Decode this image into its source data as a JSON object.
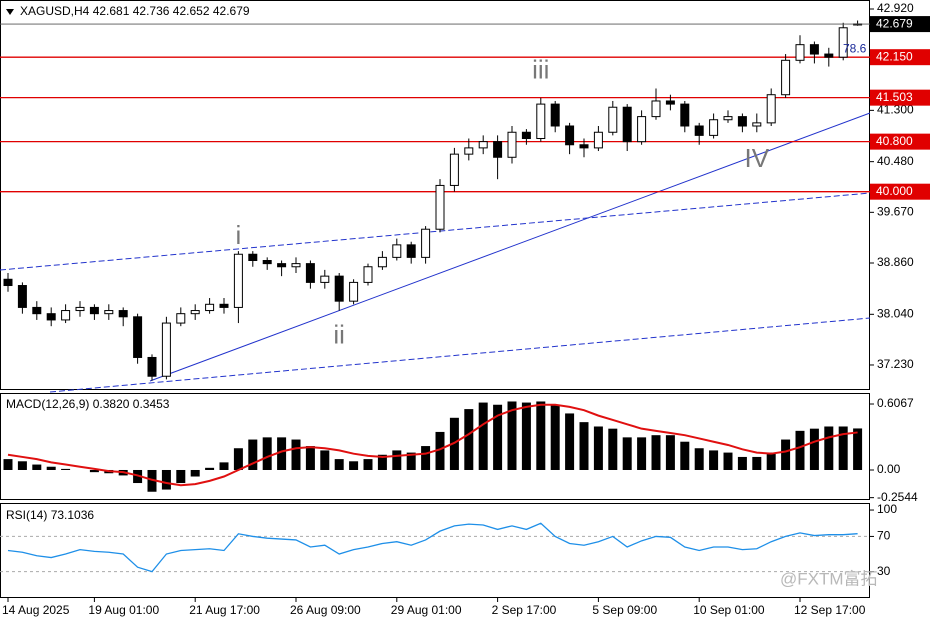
{
  "chart_data": [
    {
      "type": "candlestick",
      "title": "XAGUSD,H4",
      "categories": [
        "14 Aug 2025",
        null,
        null,
        null,
        null,
        null,
        "19 Aug 01:00",
        null,
        null,
        null,
        null,
        null,
        null,
        "21 Aug 17:00",
        null,
        null,
        null,
        null,
        null,
        null,
        "26 Aug 09:00",
        null,
        null,
        null,
        null,
        null,
        null,
        "29 Aug 01:00",
        null,
        null,
        null,
        null,
        null,
        null,
        "2 Sep 17:00",
        null,
        null,
        null,
        null,
        null,
        null,
        "5 Sep 09:00",
        null,
        null,
        null,
        null,
        null,
        null,
        "10 Sep 01:00",
        null,
        null,
        null,
        null,
        null,
        null,
        "12 Sep 17:00",
        null,
        null,
        null,
        null
      ],
      "open": [
        38.6,
        38.5,
        38.15,
        38.05,
        37.95,
        38.1,
        38.15,
        38.05,
        38.1,
        38.0,
        37.35,
        37.05,
        37.9,
        38.05,
        38.1,
        38.2,
        38.15,
        39.0,
        38.9,
        38.85,
        38.8,
        38.85,
        38.55,
        38.65,
        38.25,
        38.55,
        38.8,
        38.95,
        39.15,
        38.95,
        39.4,
        40.1,
        40.6,
        40.7,
        40.8,
        40.55,
        40.95,
        40.85,
        41.4,
        41.05,
        40.75,
        40.7,
        40.95,
        41.35,
        40.8,
        41.2,
        41.45,
        41.4,
        41.05,
        40.9,
        41.15,
        41.2,
        41.05,
        41.1,
        41.55,
        42.1,
        42.35,
        42.2,
        42.15,
        42.681
      ],
      "high": [
        38.7,
        38.55,
        38.25,
        38.15,
        38.2,
        38.25,
        38.2,
        38.2,
        38.15,
        38.05,
        37.4,
        38.0,
        38.15,
        38.2,
        38.3,
        38.3,
        39.05,
        39.05,
        38.95,
        38.9,
        38.95,
        38.9,
        38.75,
        38.7,
        38.6,
        38.85,
        39.05,
        39.25,
        39.2,
        39.45,
        40.2,
        40.7,
        40.85,
        40.9,
        40.9,
        41.05,
        41.0,
        41.5,
        41.45,
        41.1,
        40.85,
        41.05,
        41.45,
        41.4,
        41.3,
        41.65,
        41.55,
        41.45,
        41.1,
        41.25,
        41.3,
        41.25,
        41.25,
        41.65,
        42.2,
        42.5,
        42.4,
        42.3,
        42.7,
        42.736
      ],
      "low": [
        38.4,
        38.05,
        37.95,
        37.85,
        37.9,
        38.0,
        37.95,
        37.95,
        37.85,
        37.25,
        36.98,
        37.0,
        37.85,
        37.95,
        38.05,
        38.05,
        37.9,
        38.8,
        38.75,
        38.65,
        38.7,
        38.45,
        38.45,
        38.1,
        38.2,
        38.5,
        38.75,
        38.9,
        38.85,
        38.85,
        39.35,
        40.0,
        40.5,
        40.6,
        40.2,
        40.45,
        40.75,
        40.8,
        40.95,
        40.6,
        40.55,
        40.65,
        40.9,
        40.65,
        40.75,
        41.15,
        41.3,
        40.95,
        40.75,
        40.85,
        41.1,
        40.95,
        40.95,
        41.05,
        41.5,
        42.05,
        42.05,
        42.0,
        42.1,
        42.652
      ],
      "close": [
        38.5,
        38.15,
        38.05,
        37.95,
        38.1,
        38.15,
        38.05,
        38.1,
        38.0,
        37.35,
        37.05,
        37.9,
        38.05,
        38.1,
        38.2,
        38.15,
        39.0,
        38.9,
        38.85,
        38.8,
        38.85,
        38.55,
        38.65,
        38.25,
        38.55,
        38.8,
        38.95,
        39.15,
        38.95,
        39.4,
        40.1,
        40.6,
        40.7,
        40.8,
        40.55,
        40.95,
        40.85,
        41.4,
        41.05,
        40.75,
        40.7,
        40.95,
        41.35,
        40.8,
        41.2,
        41.45,
        41.4,
        41.05,
        40.9,
        41.15,
        41.2,
        41.05,
        41.1,
        41.55,
        42.1,
        42.35,
        42.2,
        42.15,
        42.62,
        42.679
      ],
      "ylim": [
        36.83,
        43.064
      ],
      "yticks": [
        {
          "value": 42.92,
          "label": "42.920"
        },
        {
          "value": 41.3,
          "label": "41.300"
        },
        {
          "value": 40.48,
          "label": "40.480"
        },
        {
          "value": 39.67,
          "label": "39.670"
        },
        {
          "value": 38.86,
          "label": "38.860"
        },
        {
          "value": 38.04,
          "label": "38.040"
        },
        {
          "value": 37.23,
          "label": "37.230"
        }
      ],
      "levels": [
        {
          "value": 42.15,
          "label": "42.150"
        },
        {
          "value": 41.503,
          "label": "41.503"
        },
        {
          "value": 40.8,
          "label": "40.800"
        },
        {
          "value": 40.0,
          "label": "40.000"
        }
      ],
      "level_color": "#e00000",
      "annotations": [
        "i",
        "ii",
        "iii",
        "IV"
      ],
      "fib_label": "78.6",
      "watermark": "@FXTM富拓"
    },
    {
      "type": "macd",
      "title": "MACD(12,26,9)",
      "values": [
        0.1,
        0.08,
        0.05,
        0.03,
        0.01,
        0.0,
        -0.02,
        -0.03,
        -0.05,
        -0.12,
        -0.2,
        -0.18,
        -0.12,
        -0.06,
        0.02,
        0.07,
        0.2,
        0.28,
        0.3,
        0.3,
        0.28,
        0.22,
        0.18,
        0.1,
        0.08,
        0.1,
        0.14,
        0.18,
        0.16,
        0.22,
        0.35,
        0.48,
        0.56,
        0.62,
        0.6,
        0.63,
        0.62,
        0.63,
        0.6,
        0.52,
        0.44,
        0.4,
        0.38,
        0.3,
        0.3,
        0.32,
        0.32,
        0.26,
        0.2,
        0.18,
        0.16,
        0.12,
        0.12,
        0.16,
        0.28,
        0.36,
        0.38,
        0.4,
        0.4,
        0.382
      ],
      "value_labels": [
        null,
        null,
        null,
        null,
        null,
        null,
        null,
        null,
        null,
        null,
        null,
        null,
        null,
        null,
        null,
        null,
        null,
        null,
        null,
        null,
        null,
        null,
        null,
        null,
        null,
        null,
        null,
        null,
        null,
        null,
        null,
        null,
        null,
        null,
        null,
        null,
        null,
        null,
        null,
        null,
        null,
        null,
        null,
        null,
        null,
        null,
        null,
        null,
        null,
        null,
        null,
        null,
        null,
        null,
        null,
        null,
        null,
        null,
        null,
        "0.3820"
      ],
      "signal": [
        0.14,
        0.12,
        0.1,
        0.07,
        0.05,
        0.03,
        0.01,
        -0.01,
        -0.02,
        -0.05,
        -0.09,
        -0.12,
        -0.14,
        -0.13,
        -0.1,
        -0.06,
        0.0,
        0.06,
        0.12,
        0.17,
        0.2,
        0.21,
        0.2,
        0.18,
        0.15,
        0.13,
        0.12,
        0.13,
        0.14,
        0.15,
        0.19,
        0.25,
        0.33,
        0.42,
        0.5,
        0.55,
        0.58,
        0.6,
        0.6,
        0.58,
        0.55,
        0.5,
        0.46,
        0.42,
        0.38,
        0.36,
        0.34,
        0.32,
        0.29,
        0.26,
        0.23,
        0.19,
        0.16,
        0.15,
        0.17,
        0.21,
        0.26,
        0.3,
        0.33,
        0.3453
      ],
      "color": "#000000",
      "signal_color": "#e01010",
      "ylim": [
        -0.276,
        0.708
      ],
      "yticks": [
        0.6067,
        {
          "value": 0,
          "label": "0.00"
        },
        -0.2544
      ]
    },
    {
      "type": "line",
      "title": "RSI(14)",
      "values": [
        54,
        52,
        48,
        46,
        50,
        55,
        53,
        52,
        50,
        35,
        30,
        50,
        54,
        55,
        56,
        54,
        73,
        70,
        68,
        67,
        66,
        58,
        60,
        50,
        55,
        58,
        62,
        64,
        60,
        66,
        76,
        82,
        84,
        83,
        78,
        82,
        78,
        85,
        70,
        62,
        60,
        64,
        70,
        58,
        65,
        70,
        69,
        58,
        54,
        58,
        58,
        55,
        56,
        64,
        70,
        74,
        71,
        72,
        72,
        73.1036
      ],
      "color": "#1e8fe8",
      "ylim": [
        0,
        108
      ],
      "yticks": [
        100,
        70,
        30
      ],
      "dashed_levels": [
        70,
        30
      ]
    }
  ]
}
